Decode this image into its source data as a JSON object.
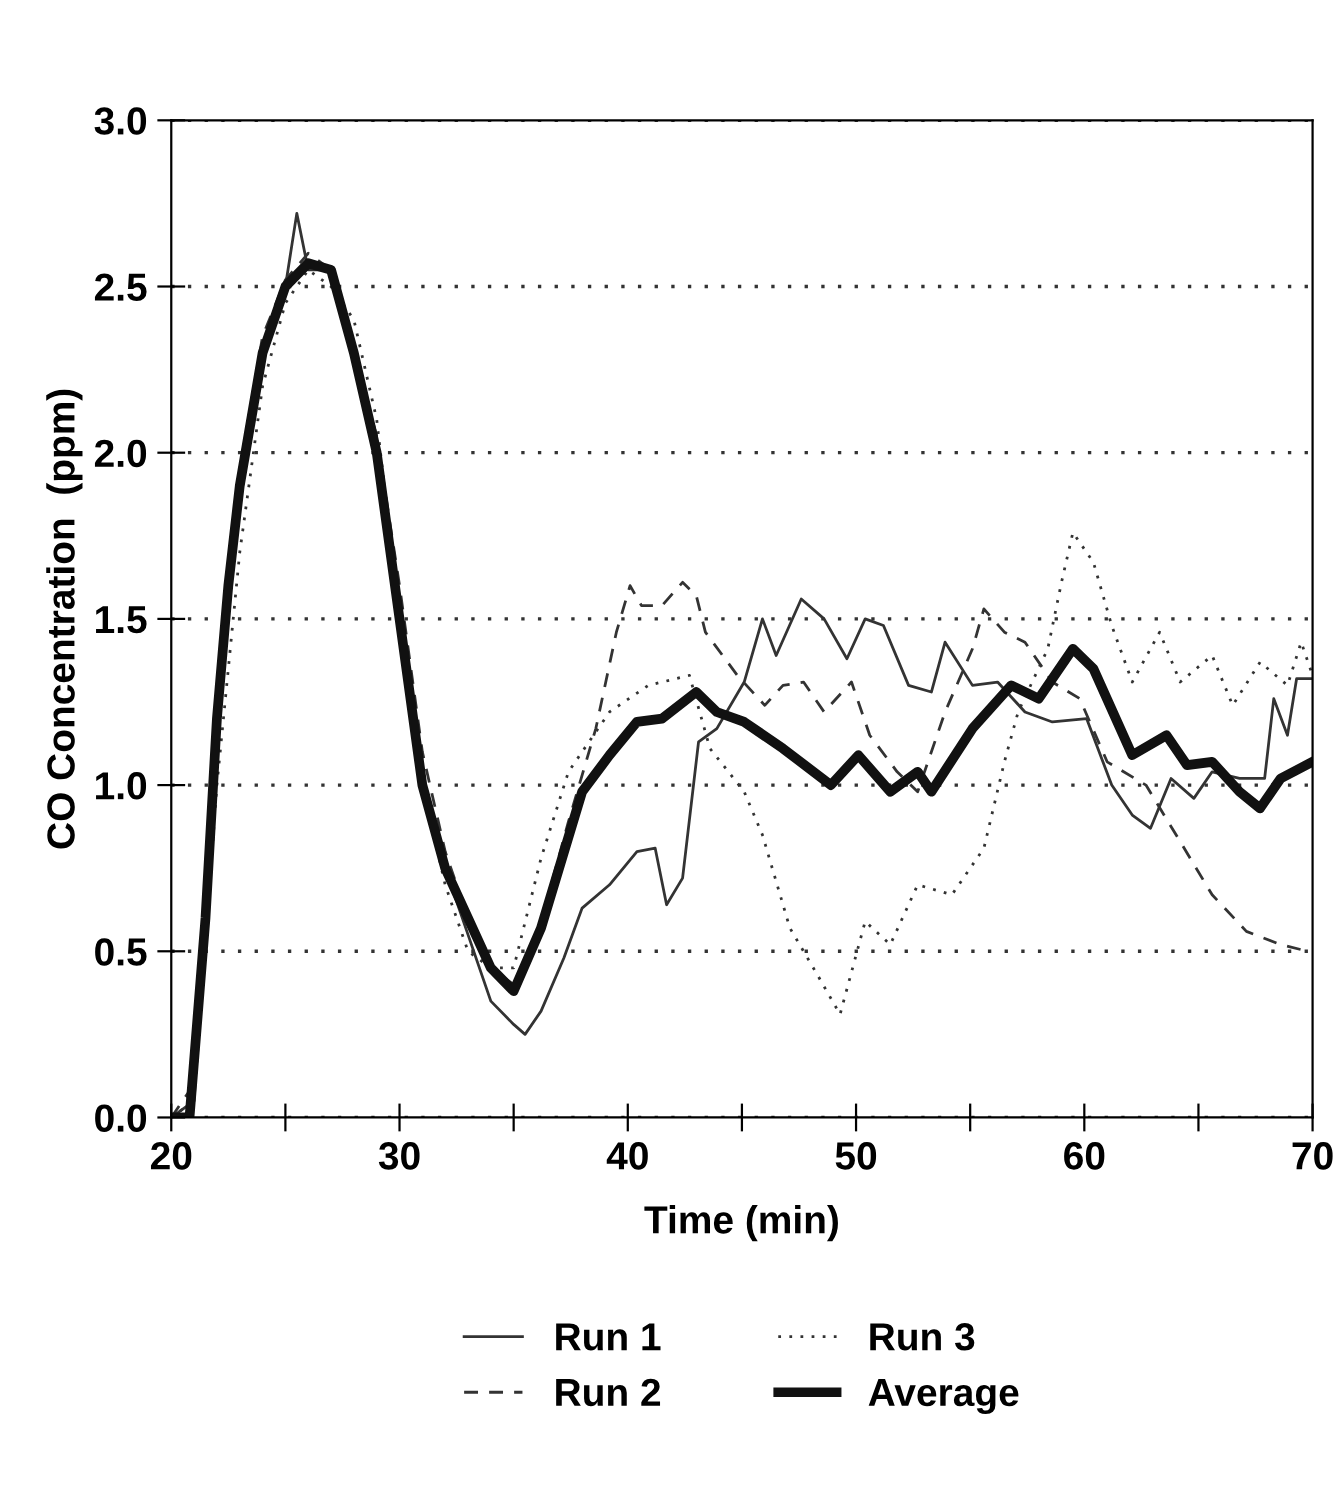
{
  "chart_data": {
    "type": "line",
    "xlabel": "Time (min)",
    "ylabel": "CO Concentration  (ppm)",
    "xlim": [
      20,
      70
    ],
    "ylim": [
      0,
      3
    ],
    "xticks": [
      20,
      {
        "value": 25,
        "label": null
      },
      30,
      {
        "value": 35,
        "label": null
      },
      40,
      {
        "value": 45,
        "label": null
      },
      50,
      {
        "value": 55,
        "label": null
      },
      60,
      {
        "value": 65,
        "label": null
      },
      70
    ],
    "yticks": [
      {
        "value": 0,
        "label": "0.0"
      },
      {
        "value": 0.5,
        "label": "0.5"
      },
      {
        "value": 1,
        "label": "1.0"
      },
      {
        "value": 1.5,
        "label": "1.5"
      },
      {
        "value": 2,
        "label": "2.0"
      },
      {
        "value": 2.5,
        "label": "2.5"
      },
      {
        "value": 3,
        "label": "3.0"
      }
    ],
    "grid": "y",
    "legend": "bottom",
    "marker": "none",
    "series": [
      {
        "name": "Run 1",
        "color": "#333333",
        "line_style": "solid",
        "x": [
          20,
          21,
          22,
          23,
          24,
          25,
          25.5,
          26,
          27,
          28,
          29,
          30,
          31,
          32,
          33,
          34,
          35,
          35.5,
          36.2,
          37.2,
          38,
          39.2,
          40.4,
          41.2,
          41.7,
          42.4,
          43.1,
          43.9,
          45.1,
          45.9,
          46.5,
          47.6,
          48.6,
          49.6,
          50.4,
          51.2,
          52.3,
          53.3,
          53.9,
          55.1,
          56.2,
          57.4,
          58.6,
          60.1,
          61.2,
          62.1,
          62.9,
          63.8,
          64.8,
          65.6,
          66.8,
          67.9,
          68.3,
          68.9,
          69.3,
          70
        ],
        "values": [
          0,
          0.05,
          1.2,
          1.9,
          2.3,
          2.5,
          2.72,
          2.55,
          2.55,
          2.3,
          2.0,
          1.5,
          1.0,
          0.75,
          0.55,
          0.35,
          0.28,
          0.25,
          0.32,
          0.48,
          0.63,
          0.7,
          0.8,
          0.81,
          0.64,
          0.72,
          1.13,
          1.17,
          1.31,
          1.5,
          1.39,
          1.56,
          1.5,
          1.38,
          1.5,
          1.48,
          1.3,
          1.28,
          1.43,
          1.3,
          1.31,
          1.22,
          1.19,
          1.2,
          1.0,
          0.91,
          0.87,
          1.02,
          0.96,
          1.04,
          1.02,
          1.02,
          1.26,
          1.15,
          1.32,
          1.32
        ]
      },
      {
        "name": "Run 2",
        "color": "#333333",
        "line_style": "dashed",
        "x": [
          20,
          21,
          22,
          23,
          24,
          25,
          26,
          27,
          28,
          29,
          30,
          31,
          32,
          33,
          34,
          35,
          36.2,
          37.4,
          38.6,
          39.5,
          40.1,
          40.6,
          41.5,
          42.4,
          43,
          43.4,
          44.8,
          46,
          46.8,
          47.7,
          48.6,
          49.8,
          50.6,
          51.8,
          52.7,
          53.9,
          55.1,
          55.6,
          56.5,
          57.4,
          58.6,
          59.8,
          61,
          62.7,
          64.2,
          65.6,
          67.1,
          68.6,
          69.8
        ],
        "values": [
          0,
          0.1,
          1.2,
          1.95,
          2.35,
          2.52,
          2.6,
          2.55,
          2.3,
          2.05,
          1.6,
          1.1,
          0.8,
          0.6,
          0.45,
          0.4,
          0.59,
          0.89,
          1.17,
          1.46,
          1.6,
          1.54,
          1.54,
          1.61,
          1.57,
          1.46,
          1.33,
          1.24,
          1.3,
          1.31,
          1.22,
          1.31,
          1.15,
          1.04,
          0.98,
          1.22,
          1.41,
          1.53,
          1.46,
          1.43,
          1.31,
          1.26,
          1.07,
          1.0,
          0.83,
          0.67,
          0.56,
          0.52,
          0.5
        ]
      },
      {
        "name": "Run 3",
        "color": "#333333",
        "line_style": "dotted",
        "x": [
          20,
          21,
          22,
          23,
          24,
          25,
          26,
          27,
          28,
          29,
          30,
          31,
          32,
          33,
          34,
          35,
          36.2,
          37.4,
          39.2,
          40.9,
          42.7,
          43.6,
          45.1,
          45.9,
          47.1,
          48.3,
          49.3,
          50.4,
          51.5,
          52.7,
          54.2,
          55.6,
          56.5,
          57.1,
          58.4,
          59,
          59.5,
          60.4,
          61.2,
          62.1,
          63.3,
          64.2,
          65.6,
          66.5,
          67.7,
          68.9,
          69.5,
          70
        ],
        "values": [
          0,
          0.05,
          1.0,
          1.7,
          2.2,
          2.45,
          2.55,
          2.5,
          2.4,
          2.1,
          1.5,
          1.0,
          0.7,
          0.5,
          0.45,
          0.45,
          0.78,
          1.04,
          1.22,
          1.3,
          1.33,
          1.11,
          0.98,
          0.85,
          0.57,
          0.43,
          0.31,
          0.59,
          0.52,
          0.7,
          0.67,
          0.81,
          1.07,
          1.22,
          1.41,
          1.61,
          1.76,
          1.67,
          1.48,
          1.31,
          1.46,
          1.31,
          1.39,
          1.24,
          1.37,
          1.3,
          1.43,
          1.33
        ]
      },
      {
        "name": "Average",
        "color": "#111111",
        "line_style": "solid",
        "x": [
          20,
          20.8,
          21.5,
          22,
          22.5,
          23,
          24,
          25,
          26,
          27,
          28,
          29,
          30,
          31,
          32,
          33,
          34,
          35,
          36.2,
          38,
          39.2,
          40.4,
          41.5,
          43,
          43.9,
          45.1,
          46.8,
          48.9,
          50.1,
          51.5,
          52.7,
          53.3,
          55.1,
          56.8,
          58,
          59.5,
          60.4,
          62.1,
          63.6,
          64.5,
          65.6,
          66.8,
          67.7,
          68.6,
          70
        ],
        "values": [
          0,
          0,
          0.6,
          1.2,
          1.6,
          1.9,
          2.3,
          2.5,
          2.57,
          2.55,
          2.3,
          2.0,
          1.5,
          1.0,
          0.75,
          0.6,
          0.45,
          0.38,
          0.57,
          0.98,
          1.09,
          1.19,
          1.2,
          1.28,
          1.22,
          1.19,
          1.11,
          1.0,
          1.09,
          0.98,
          1.04,
          0.98,
          1.17,
          1.3,
          1.26,
          1.41,
          1.35,
          1.09,
          1.15,
          1.06,
          1.07,
          0.98,
          0.93,
          1.02,
          1.07
        ]
      }
    ]
  }
}
